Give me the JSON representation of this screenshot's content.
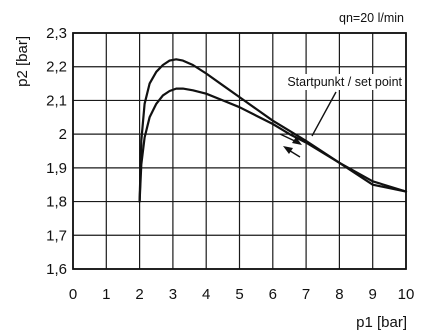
{
  "chart_data": {
    "type": "line",
    "annotation": "qn=20 l/min",
    "callout": "Startpunkt / set point",
    "xlabel": "p1 [bar]",
    "ylabel": "p2 [bar]",
    "xlim": [
      0,
      10
    ],
    "ylim": [
      1.6,
      2.3
    ],
    "x_ticks": [
      "0",
      "1",
      "2",
      "3",
      "4",
      "5",
      "6",
      "7",
      "8",
      "9",
      "10"
    ],
    "y_ticks": [
      "1,6",
      "1,7",
      "1,8",
      "1,9",
      "2",
      "2,1",
      "2,2",
      "2,3"
    ],
    "y_tick_values": [
      1.6,
      1.7,
      1.8,
      1.9,
      2.0,
      2.1,
      2.2,
      2.3
    ],
    "grid": true,
    "series": [
      {
        "x": [
          2.0,
          2.05,
          2.15,
          2.3,
          2.5,
          2.7,
          2.9,
          3.1,
          3.3,
          3.6,
          4.0,
          4.5,
          5.0,
          5.5,
          6.0,
          6.5,
          7.0,
          8.0,
          9.0,
          10.0
        ],
        "y": [
          1.8,
          1.98,
          2.09,
          2.15,
          2.185,
          2.205,
          2.218,
          2.222,
          2.218,
          2.205,
          2.18,
          2.145,
          2.11,
          2.075,
          2.04,
          2.01,
          1.98,
          1.915,
          1.85,
          1.83
        ]
      },
      {
        "x": [
          2.0,
          2.05,
          2.15,
          2.3,
          2.5,
          2.7,
          2.9,
          3.1,
          3.3,
          3.6,
          4.0,
          4.5,
          5.0,
          5.5,
          6.0,
          6.5,
          7.0,
          8.0,
          9.0,
          10.0
        ],
        "y": [
          1.8,
          1.91,
          1.99,
          2.05,
          2.09,
          2.115,
          2.128,
          2.135,
          2.135,
          2.13,
          2.12,
          2.1,
          2.08,
          2.055,
          2.03,
          2.0,
          1.975,
          1.915,
          1.86,
          1.83
        ]
      }
    ]
  }
}
